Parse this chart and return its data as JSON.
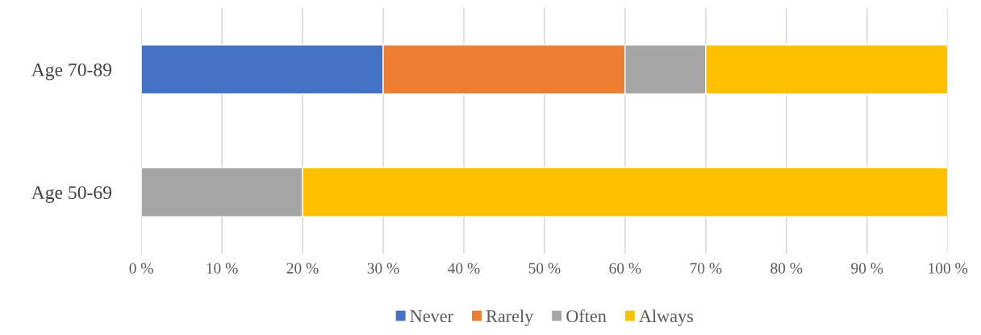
{
  "chart_data": {
    "type": "bar",
    "orientation": "horizontal",
    "stacked": true,
    "categories": [
      "Age 70-89",
      "Age 50-69"
    ],
    "series": [
      {
        "name": "Never",
        "color": "#4472c4",
        "values": [
          30,
          0
        ]
      },
      {
        "name": "Rarely",
        "color": "#ed7d31",
        "values": [
          30,
          0
        ]
      },
      {
        "name": "Often",
        "color": "#a5a5a5",
        "values": [
          10,
          20
        ]
      },
      {
        "name": "Always",
        "color": "#ffc000",
        "values": [
          30,
          80
        ]
      }
    ],
    "xlim": [
      0,
      100
    ],
    "xticks": [
      {
        "value": 0,
        "label": "0 %"
      },
      {
        "value": 10,
        "label": "10 %"
      },
      {
        "value": 20,
        "label": "20 %"
      },
      {
        "value": 30,
        "label": "30 %"
      },
      {
        "value": 40,
        "label": "40 %"
      },
      {
        "value": 50,
        "label": "50 %"
      },
      {
        "value": 60,
        "label": "60 %"
      },
      {
        "value": 70,
        "label": "70 %"
      },
      {
        "value": 80,
        "label": "80 %"
      },
      {
        "value": 90,
        "label": "90 %"
      },
      {
        "value": 100,
        "label": "100 %"
      }
    ],
    "grid": "x",
    "legend": "bottom"
  }
}
